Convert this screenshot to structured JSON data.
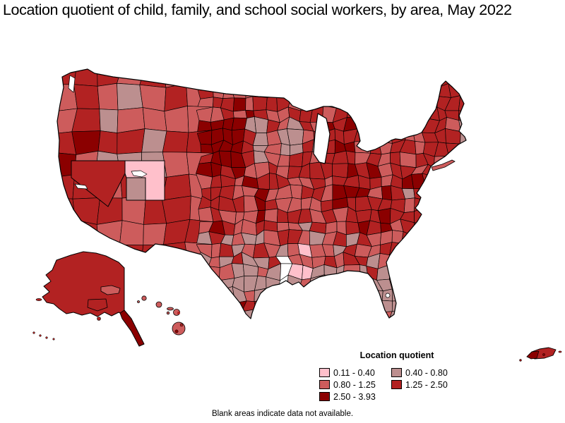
{
  "title": "Location quotient of child, family, and school social workers, by area, May 2022",
  "legend": {
    "title": "Location quotient",
    "items": [
      {
        "key": "c1",
        "label": "0.11 - 0.40",
        "color": "#ffc0cb"
      },
      {
        "key": "c2",
        "label": "0.40 - 0.80",
        "color": "#bc8f8f"
      },
      {
        "key": "c3",
        "label": "0.80 - 1.25",
        "color": "#cd5c5c"
      },
      {
        "key": "c4",
        "label": "1.25 - 2.50",
        "color": "#b22222"
      },
      {
        "key": "c5",
        "label": "2.50 - 3.93",
        "color": "#8b0000"
      }
    ]
  },
  "footnote": "Blank areas indicate data not available.",
  "map": {
    "blank_color": "#ffffff",
    "border_color": "#000000",
    "includes": [
      "contiguous United States",
      "Alaska",
      "Hawaii",
      "Puerto Rico"
    ]
  },
  "chart_data": {
    "type": "choropleth",
    "measure": "Location quotient of child, family, and school social workers",
    "period": "May 2022",
    "value_min": 0.11,
    "value_max": 3.93,
    "bins": [
      {
        "range": "0.11 - 0.40",
        "color": "#ffc0cb"
      },
      {
        "range": "0.40 - 0.80",
        "color": "#bc8f8f"
      },
      {
        "range": "0.80 - 1.25",
        "color": "#cd5c5c"
      },
      {
        "range": "1.25 - 2.50",
        "color": "#b22222"
      },
      {
        "range": "2.50 - 3.93",
        "color": "#8b0000"
      }
    ],
    "notable_patterns": [
      {
        "area": "Utah",
        "bin": "0.11 - 0.40"
      },
      {
        "area": "Louisiana (several areas)",
        "bin": "blank / 0.11 - 0.40"
      },
      {
        "area": "Idaho and central mountain areas",
        "bin": "0.40 - 0.80"
      },
      {
        "area": "Texas (large western/central areas)",
        "bin": "0.40 - 0.80"
      },
      {
        "area": "Florida peninsula",
        "bin": "0.40 - 0.80"
      },
      {
        "area": "Nevada",
        "bin": "1.25 - 2.50"
      },
      {
        "area": "Alaska",
        "bin": "1.25 - 2.50"
      },
      {
        "area": "Hawaii",
        "bin": "0.80 - 1.25"
      },
      {
        "area": "Northeast and Appalachia (most areas)",
        "bin": "1.25 - 2.50"
      },
      {
        "area": "Western Dakotas / Nebraska nonmetro",
        "bin": "2.50 - 3.93"
      },
      {
        "area": "Northern Michigan",
        "bin": "2.50 - 3.93"
      },
      {
        "area": "Puerto Rico",
        "bin": "1.25 - 3.93"
      }
    ],
    "footnote": "Blank areas indicate data not available."
  }
}
